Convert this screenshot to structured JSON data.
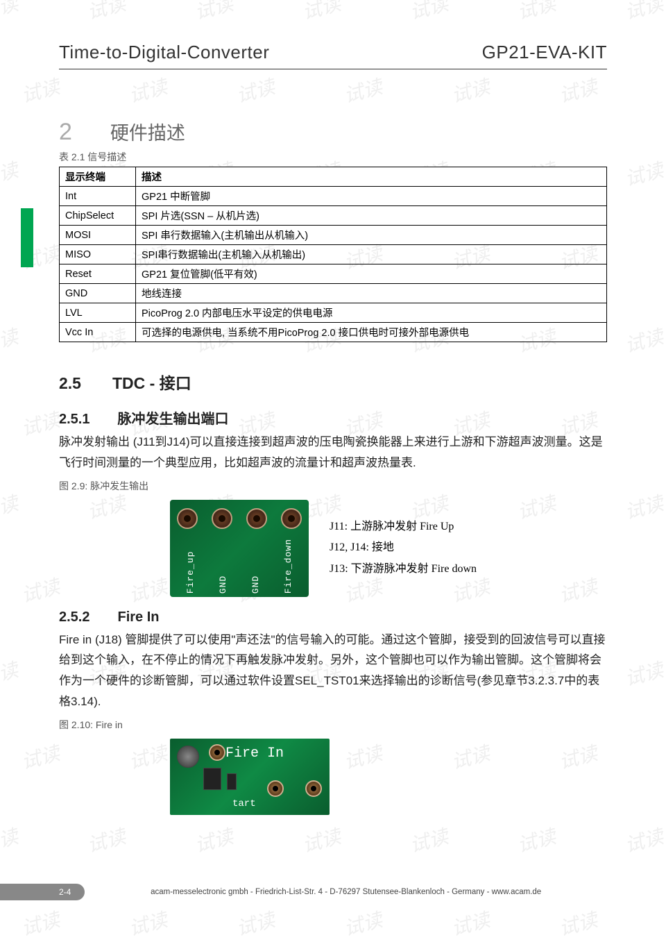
{
  "watermark_text": "试读",
  "header": {
    "left": "Time-to-Digital-Converter",
    "right": "GP21-EVA-KIT"
  },
  "side_tab_color": "#00a651",
  "chapter": {
    "num": "2",
    "title": "硬件描述"
  },
  "table_caption": "表 2.1 信号描述",
  "table": {
    "headers": [
      "显示终端",
      "描述"
    ],
    "rows": [
      [
        "Int",
        "GP21 中断管脚"
      ],
      [
        "ChipSelect",
        "SPI 片选(SSN – 从机片选)"
      ],
      [
        "MOSI",
        "SPI 串行数据输入(主机输出从机输入)"
      ],
      [
        "MISO",
        "SPI串行数据输出(主机输入从机输出)"
      ],
      [
        "Reset",
        "GP21 复位管脚(低平有效)"
      ],
      [
        "GND",
        "地线连接"
      ],
      [
        "LVL",
        "PicoProg 2.0 内部电压水平设定的供电电源"
      ],
      [
        "Vcc In",
        "可选择的电源供电, 当系统不用PicoProg 2.0 接口供电时可接外部电源供电"
      ]
    ]
  },
  "sec25": {
    "num": "2.5",
    "title": "TDC - 接口"
  },
  "sec251": {
    "num": "2.5.1",
    "title": "脉冲发生输出端口",
    "body": "脉冲发射输出 (J11到J14)可以直接连接到超声波的压电陶瓷换能器上来进行上游和下游超声波测量。这是飞行时间测量的一个典型应用，比如超声波的流量计和超声波热量表.",
    "fig_caption": "图 2.9: 脉冲发生输出",
    "pcb_labels": [
      "Fire_up",
      "GND",
      "GND",
      "Fire_down"
    ],
    "pin_list": [
      "J11: 上游脉冲发射 Fire Up",
      "J12, J14: 接地",
      "J13: 下游游脉冲发射 Fire down"
    ]
  },
  "sec252": {
    "num": "2.5.2",
    "title": "Fire In",
    "body": "Fire in (J18) 管脚提供了可以使用\"声还法\"的信号输入的可能。通过这个管脚，接受到的回波信号可以直接给到这个输入，在不停止的情况下再触发脉冲发射。另外，这个管脚也可以作为输出管脚。这个管脚将会作为一个硬件的诊断管脚，可以通过软件设置SEL_TST01来选择输出的诊断信号(参见章节3.2.3.7中的表格3.14).",
    "fig_caption": "图 2.10: Fire in",
    "img_label": "Fire In",
    "img_label2": "tart"
  },
  "footer": {
    "page": "2-4",
    "text": "acam-messelectronic gmbh - Friedrich-List-Str. 4 - D-76297 Stutensee-Blankenloch - Germany - www.acam.de"
  }
}
